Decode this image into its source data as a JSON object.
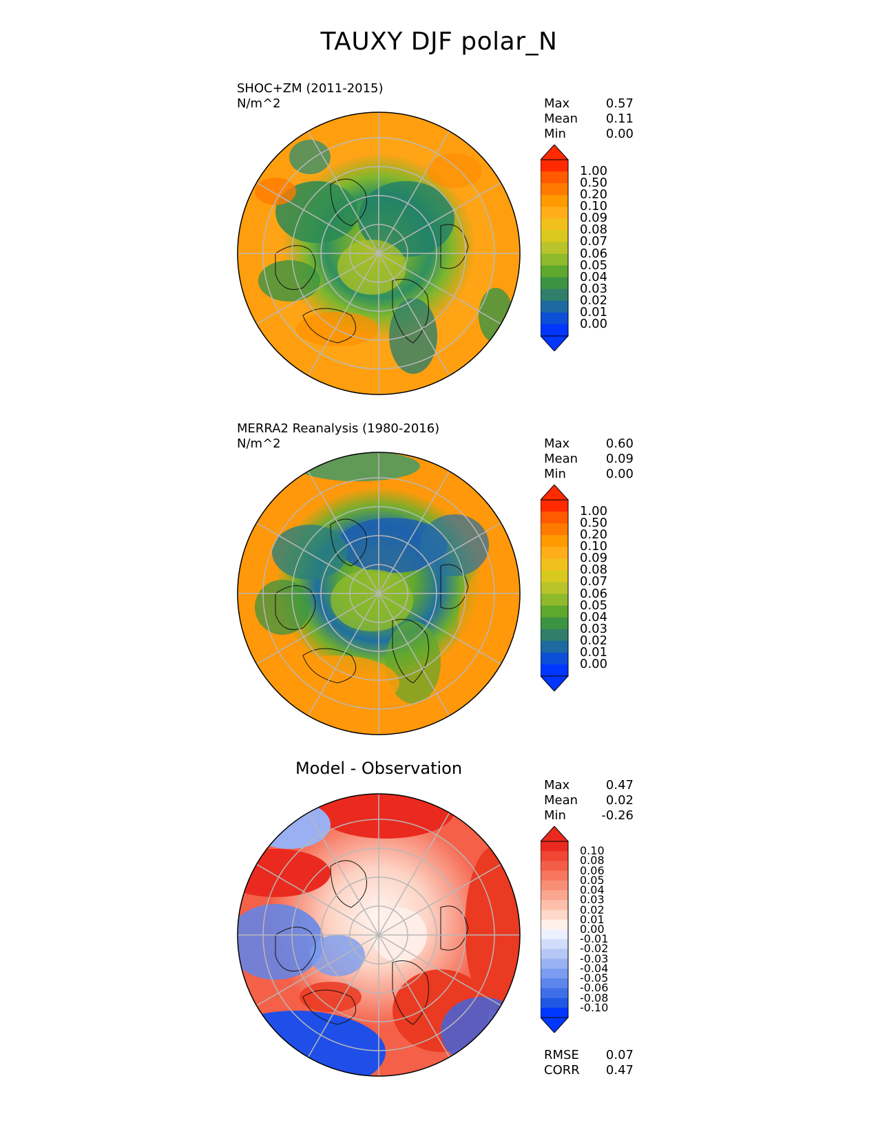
{
  "figure_title": "TAUXY DJF polar_N",
  "panels": [
    {
      "id": "test",
      "title": "SHOC+ZM (2011-2015)",
      "units": "N/m^2",
      "stats": [
        {
          "label": "Max",
          "value": "0.57"
        },
        {
          "label": "Mean",
          "value": "0.11"
        },
        {
          "label": "Min",
          "value": "0.00"
        }
      ],
      "colorbar": {
        "labels": [
          "1.00",
          "0.50",
          "0.20",
          "0.10",
          "0.09",
          "0.08",
          "0.07",
          "0.06",
          "0.05",
          "0.04",
          "0.03",
          "0.02",
          "0.01",
          "0.00"
        ],
        "colors": [
          "#ff2a00",
          "#ff5a00",
          "#ff7a00",
          "#ff9a00",
          "#ffae1a",
          "#f2c01c",
          "#d9c91f",
          "#b9c42a",
          "#8fba2c",
          "#5fa82e",
          "#3b9442",
          "#2f7f6a",
          "#1d6aa0",
          "#0b4fd6",
          "#0036ff"
        ],
        "max_color": "#ff2a00",
        "min_color": "#0036ff"
      }
    },
    {
      "id": "ref",
      "title": "MERRA2 Reanalysis (1980-2016)",
      "units": "N/m^2",
      "stats": [
        {
          "label": "Max",
          "value": "0.60"
        },
        {
          "label": "Mean",
          "value": "0.09"
        },
        {
          "label": "Min",
          "value": "0.00"
        }
      ],
      "colorbar": {
        "labels": [
          "1.00",
          "0.50",
          "0.20",
          "0.10",
          "0.09",
          "0.08",
          "0.07",
          "0.06",
          "0.05",
          "0.04",
          "0.03",
          "0.02",
          "0.01",
          "0.00"
        ],
        "colors": [
          "#ff2a00",
          "#ff5a00",
          "#ff7a00",
          "#ff9a00",
          "#ffae1a",
          "#f2c01c",
          "#d9c91f",
          "#b9c42a",
          "#8fba2c",
          "#5fa82e",
          "#3b9442",
          "#2f7f6a",
          "#1d6aa0",
          "#0b4fd6",
          "#0036ff"
        ],
        "max_color": "#ff2a00",
        "min_color": "#0036ff"
      }
    },
    {
      "id": "diff",
      "title": "Model - Observation",
      "stats": [
        {
          "label": "Max",
          "value": "0.47"
        },
        {
          "label": "Mean",
          "value": "0.02"
        },
        {
          "label": "Min",
          "value": "-0.26"
        }
      ],
      "extra_stats": [
        {
          "label": "RMSE",
          "value": "0.07"
        },
        {
          "label": "CORR",
          "value": "0.47"
        }
      ],
      "colorbar": {
        "labels": [
          "0.10",
          "0.08",
          "0.06",
          "0.05",
          "0.04",
          "0.03",
          "0.02",
          "0.01",
          "0.00",
          "-0.01",
          "-0.02",
          "-0.03",
          "-0.04",
          "-0.05",
          "-0.06",
          "-0.08",
          "-0.10"
        ],
        "colors": [
          "#ea2a1e",
          "#f04633",
          "#f45e48",
          "#f7765e",
          "#f98e76",
          "#fba68f",
          "#fdbfaa",
          "#fed8c8",
          "#fff0ea",
          "#ecf0ff",
          "#d2dcfb",
          "#b6c7f7",
          "#99b2f3",
          "#7b9cf0",
          "#5d86ec",
          "#3e6fe8",
          "#2058e4",
          "#0038ff"
        ],
        "max_color": "#ea2a1e",
        "min_color": "#0038ff"
      }
    }
  ]
}
